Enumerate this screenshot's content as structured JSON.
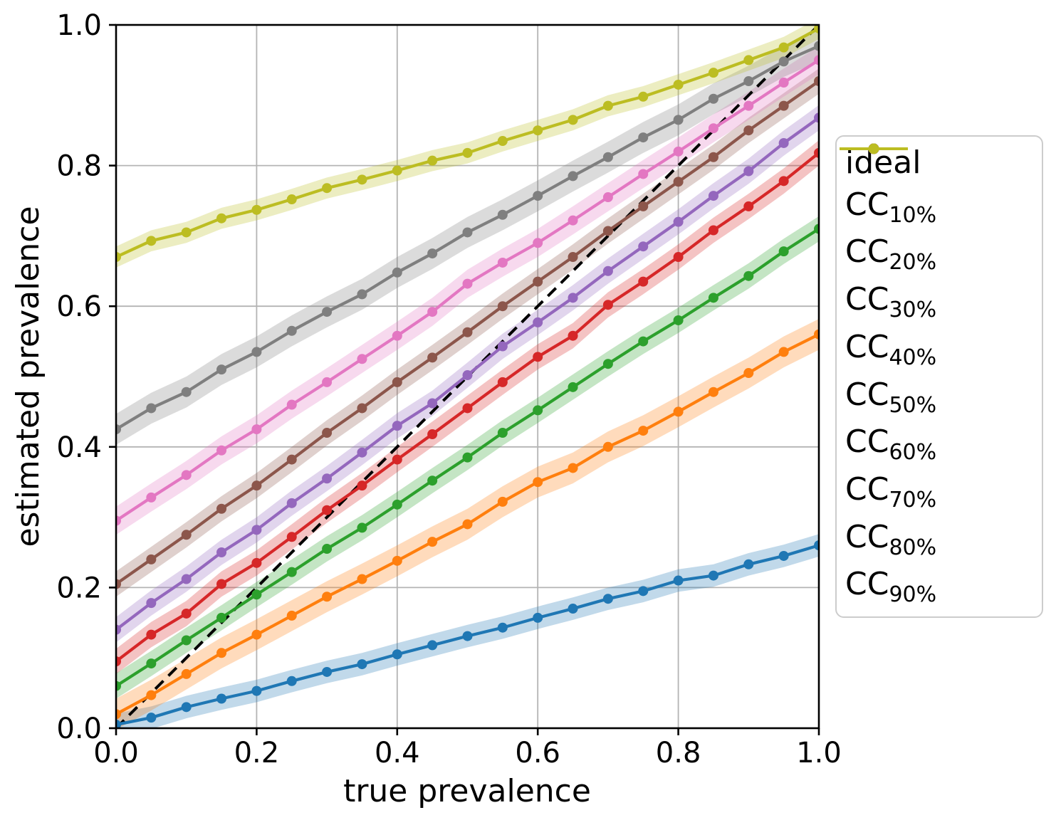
{
  "chart_data": {
    "type": "line",
    "title": "",
    "xlabel": "true prevalence",
    "ylabel": "estimated prevalence",
    "xlim": [
      0.0,
      1.0
    ],
    "ylim": [
      0.0,
      1.0
    ],
    "x_ticks": [
      0.0,
      0.2,
      0.4,
      0.6,
      0.8,
      1.0
    ],
    "y_ticks": [
      0.0,
      0.2,
      0.4,
      0.6,
      0.8,
      1.0
    ],
    "grid": true,
    "legend_position": "outside-right",
    "x": [
      0.0,
      0.05,
      0.1,
      0.15,
      0.2,
      0.25,
      0.3,
      0.35,
      0.4,
      0.45,
      0.5,
      0.55,
      0.6,
      0.65,
      0.7,
      0.75,
      0.8,
      0.85,
      0.9,
      0.95,
      1.0
    ],
    "reference_line": {
      "name": "ideal",
      "style": "dashed",
      "color": "#000000",
      "x": [
        0.0,
        1.0
      ],
      "y": [
        0.0,
        1.0
      ]
    },
    "series": [
      {
        "name": "CC_10%",
        "label_main": "CC",
        "label_sub": "10%",
        "color": "#1f77b4",
        "band": 0.016,
        "values": [
          0.005,
          0.015,
          0.03,
          0.042,
          0.053,
          0.067,
          0.08,
          0.091,
          0.105,
          0.118,
          0.131,
          0.143,
          0.157,
          0.17,
          0.184,
          0.195,
          0.21,
          0.217,
          0.233,
          0.245,
          0.26
        ]
      },
      {
        "name": "CC_20%",
        "label_main": "CC",
        "label_sub": "20%",
        "color": "#ff7f0e",
        "band": 0.022,
        "values": [
          0.02,
          0.047,
          0.077,
          0.107,
          0.133,
          0.16,
          0.187,
          0.212,
          0.238,
          0.265,
          0.29,
          0.322,
          0.35,
          0.37,
          0.4,
          0.423,
          0.45,
          0.478,
          0.505,
          0.535,
          0.56
        ]
      },
      {
        "name": "CC_30%",
        "label_main": "CC",
        "label_sub": "30%",
        "color": "#2ca02c",
        "band": 0.018,
        "values": [
          0.06,
          0.092,
          0.125,
          0.157,
          0.19,
          0.222,
          0.255,
          0.285,
          0.318,
          0.352,
          0.385,
          0.42,
          0.452,
          0.485,
          0.518,
          0.55,
          0.58,
          0.612,
          0.643,
          0.678,
          0.71
        ]
      },
      {
        "name": "CC_40%",
        "label_main": "CC",
        "label_sub": "40%",
        "color": "#d62728",
        "band": 0.018,
        "values": [
          0.095,
          0.133,
          0.163,
          0.205,
          0.235,
          0.272,
          0.31,
          0.345,
          0.382,
          0.418,
          0.455,
          0.492,
          0.528,
          0.558,
          0.602,
          0.635,
          0.67,
          0.708,
          0.742,
          0.778,
          0.818
        ]
      },
      {
        "name": "CC_50%",
        "label_main": "CC",
        "label_sub": "50%",
        "color": "#9467bd",
        "band": 0.018,
        "values": [
          0.14,
          0.178,
          0.212,
          0.25,
          0.282,
          0.32,
          0.355,
          0.392,
          0.43,
          0.462,
          0.502,
          0.543,
          0.577,
          0.612,
          0.65,
          0.685,
          0.72,
          0.757,
          0.792,
          0.832,
          0.868
        ]
      },
      {
        "name": "CC_60%",
        "label_main": "CC",
        "label_sub": "60%",
        "color": "#8c564b",
        "band": 0.018,
        "values": [
          0.205,
          0.24,
          0.275,
          0.312,
          0.345,
          0.382,
          0.42,
          0.455,
          0.492,
          0.527,
          0.563,
          0.6,
          0.635,
          0.67,
          0.707,
          0.742,
          0.777,
          0.812,
          0.85,
          0.885,
          0.92
        ]
      },
      {
        "name": "CC_70%",
        "label_main": "CC",
        "label_sub": "70%",
        "color": "#e377c2",
        "band": 0.02,
        "values": [
          0.295,
          0.328,
          0.36,
          0.395,
          0.425,
          0.46,
          0.492,
          0.525,
          0.558,
          0.592,
          0.632,
          0.662,
          0.69,
          0.722,
          0.755,
          0.788,
          0.82,
          0.853,
          0.885,
          0.918,
          0.95
        ]
      },
      {
        "name": "CC_80%",
        "label_main": "CC",
        "label_sub": "80%",
        "color": "#7f7f7f",
        "band": 0.022,
        "values": [
          0.425,
          0.455,
          0.478,
          0.51,
          0.535,
          0.565,
          0.592,
          0.617,
          0.648,
          0.675,
          0.705,
          0.73,
          0.757,
          0.785,
          0.812,
          0.84,
          0.865,
          0.895,
          0.92,
          0.948,
          0.97
        ]
      },
      {
        "name": "CC_90%",
        "label_main": "CC",
        "label_sub": "90%",
        "color": "#bcbd22",
        "band": 0.015,
        "values": [
          0.67,
          0.693,
          0.705,
          0.725,
          0.737,
          0.752,
          0.768,
          0.78,
          0.793,
          0.807,
          0.818,
          0.835,
          0.85,
          0.865,
          0.885,
          0.898,
          0.915,
          0.932,
          0.95,
          0.968,
          0.995
        ]
      }
    ],
    "style": {
      "grid_color": "#b4b4b4",
      "spine_color": "#000000",
      "band_alpha": 0.28,
      "tick_label_color": "#000000"
    }
  }
}
